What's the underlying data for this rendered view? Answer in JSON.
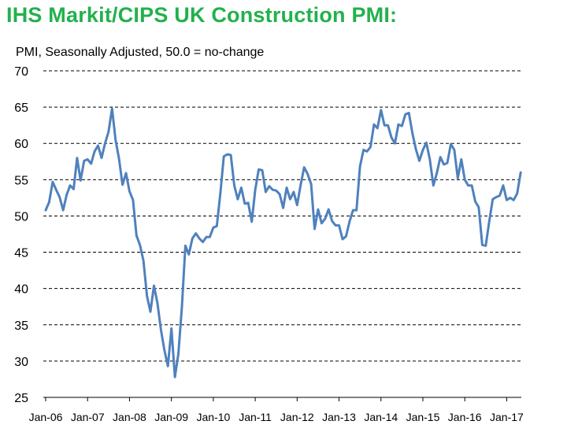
{
  "title": "IHS Markit/CIPS UK Construction PMI:",
  "subtitle": "PMI, Seasonally Adjusted, 50.0 = no-change",
  "colors": {
    "title": "#22b14c",
    "line": "#4f81bd",
    "grid": "#000000"
  },
  "chart_data": {
    "type": "line",
    "title": "IHS Markit/CIPS UK Construction PMI:",
    "ylabel": "PMI, Seasonally Adjusted, 50.0 = no-change",
    "xlabel": "",
    "ylim": [
      25,
      70
    ],
    "yticks": [
      25,
      30,
      35,
      40,
      45,
      50,
      55,
      60,
      65,
      70
    ],
    "xtick_labels": [
      "Jan-06",
      "Jan-07",
      "Jan-08",
      "Jan-09",
      "Jan-10",
      "Jan-11",
      "Jan-12",
      "Jan-13",
      "Jan-14",
      "Jan-15",
      "Jan-16",
      "Jan-17"
    ],
    "grid": "horizontal dashed",
    "legend": "none",
    "start": "Jan-06",
    "frequency": "monthly",
    "series": [
      {
        "values": [
          50.8,
          51.9,
          54.7,
          53.6,
          52.6,
          50.8,
          52.9,
          54.2,
          53.7,
          58.0,
          54.9,
          57.6,
          57.8,
          57.2,
          58.9,
          59.7,
          58.0,
          60.0,
          61.6,
          64.8,
          60.5,
          57.9,
          54.3,
          55.9,
          53.4,
          52.2,
          47.3,
          46.0,
          43.8,
          39.0,
          36.8,
          40.4,
          38.0,
          34.3,
          31.5,
          29.3,
          34.5,
          27.8,
          31.0,
          37.5,
          45.9,
          44.7,
          46.9,
          47.6,
          46.9,
          46.4,
          47.1,
          47.1,
          48.4,
          48.6,
          53.1,
          58.2,
          58.5,
          58.4,
          54.2,
          52.3,
          53.9,
          51.7,
          51.8,
          49.2,
          53.6,
          56.4,
          56.3,
          53.3,
          54.1,
          53.6,
          53.5,
          53.0,
          51.1,
          53.9,
          52.3,
          53.3,
          51.5,
          54.3,
          56.7,
          55.8,
          54.4,
          48.2,
          50.9,
          49.0,
          49.6,
          50.9,
          49.3,
          48.7,
          48.7,
          46.8,
          47.2,
          49.2,
          50.8,
          50.8,
          56.8,
          59.1,
          58.9,
          59.5,
          62.6,
          62.1,
          64.6,
          62.5,
          62.5,
          60.8,
          60.0,
          62.6,
          62.4,
          64.0,
          64.2,
          61.4,
          59.2,
          57.6,
          59.1,
          60.1,
          57.8,
          54.2,
          55.9,
          58.1,
          57.1,
          57.3,
          59.9,
          59.1,
          55.2,
          57.8,
          55.0,
          54.2,
          54.2,
          52.0,
          51.2,
          46.0,
          45.9,
          49.2,
          52.3,
          52.6,
          52.8,
          54.2,
          52.2,
          52.5,
          52.2,
          53.1,
          56.0
        ]
      }
    ]
  }
}
